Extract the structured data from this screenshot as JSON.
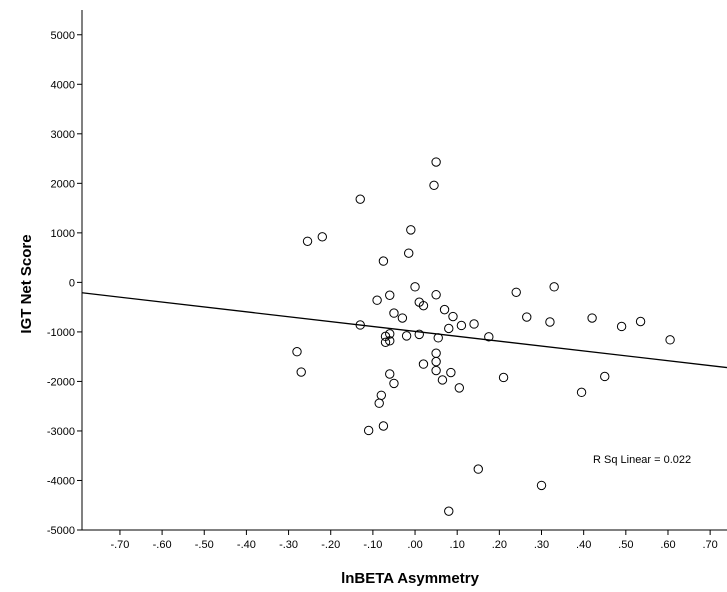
{
  "chart_data": {
    "type": "scatter",
    "title": "",
    "xlabel": "lnBETA Asymmetry",
    "ylabel": "IGT Net Score",
    "xlim": [
      -0.79,
      0.74
    ],
    "ylim": [
      -5000,
      5500
    ],
    "x_ticks": [
      -0.7,
      -0.6,
      -0.5,
      -0.4,
      -0.3,
      -0.2,
      -0.1,
      0.0,
      0.1,
      0.2,
      0.3,
      0.4,
      0.5,
      0.6,
      0.7
    ],
    "x_tick_labels": [
      "-.70",
      "-.60",
      "-.50",
      "-.40",
      "-.30",
      "-.20",
      "-.10",
      ".00",
      ".10",
      ".20",
      ".30",
      ".40",
      ".50",
      ".60",
      ".70"
    ],
    "y_ticks": [
      -5000,
      -4000,
      -3000,
      -2000,
      -1000,
      0,
      1000,
      2000,
      3000,
      4000,
      5000
    ],
    "y_tick_labels": [
      "-5000",
      "-4000",
      "-3000",
      "-2000",
      "-1000",
      "0",
      "1000",
      "2000",
      "3000",
      "4000",
      "5000"
    ],
    "grid": false,
    "fit_line": {
      "type": "linear",
      "x": [
        -0.79,
        0.74
      ],
      "y": [
        -210,
        -1720
      ]
    },
    "annotation": "R Sq Linear = 0.022",
    "points": [
      {
        "x": 0.05,
        "y": 2430
      },
      {
        "x": 0.045,
        "y": 1960
      },
      {
        "x": -0.13,
        "y": 1680
      },
      {
        "x": -0.255,
        "y": 830
      },
      {
        "x": -0.22,
        "y": 920
      },
      {
        "x": -0.01,
        "y": 1060
      },
      {
        "x": -0.015,
        "y": 590
      },
      {
        "x": -0.075,
        "y": 430
      },
      {
        "x": 0.0,
        "y": -90
      },
      {
        "x": 0.05,
        "y": -250
      },
      {
        "x": -0.06,
        "y": -260
      },
      {
        "x": -0.09,
        "y": -360
      },
      {
        "x": 0.01,
        "y": -400
      },
      {
        "x": 0.02,
        "y": -470
      },
      {
        "x": 0.07,
        "y": -550
      },
      {
        "x": -0.05,
        "y": -620
      },
      {
        "x": -0.03,
        "y": -720
      },
      {
        "x": 0.09,
        "y": -690
      },
      {
        "x": 0.11,
        "y": -870
      },
      {
        "x": 0.14,
        "y": -840
      },
      {
        "x": -0.13,
        "y": -860
      },
      {
        "x": 0.08,
        "y": -930
      },
      {
        "x": 0.01,
        "y": -1050
      },
      {
        "x": -0.02,
        "y": -1080
      },
      {
        "x": -0.06,
        "y": -1040
      },
      {
        "x": -0.07,
        "y": -1090
      },
      {
        "x": 0.055,
        "y": -1120
      },
      {
        "x": 0.175,
        "y": -1100
      },
      {
        "x": -0.06,
        "y": -1180
      },
      {
        "x": -0.07,
        "y": -1210
      },
      {
        "x": 0.05,
        "y": -1430
      },
      {
        "x": 0.05,
        "y": -1600
      },
      {
        "x": 0.02,
        "y": -1650
      },
      {
        "x": 0.05,
        "y": -1780
      },
      {
        "x": 0.085,
        "y": -1820
      },
      {
        "x": -0.06,
        "y": -1850
      },
      {
        "x": 0.065,
        "y": -1970
      },
      {
        "x": -0.05,
        "y": -2040
      },
      {
        "x": 0.105,
        "y": -2130
      },
      {
        "x": 0.21,
        "y": -1920
      },
      {
        "x": -0.28,
        "y": -1400
      },
      {
        "x": -0.27,
        "y": -1810
      },
      {
        "x": -0.08,
        "y": -2280
      },
      {
        "x": -0.085,
        "y": -2440
      },
      {
        "x": -0.075,
        "y": -2900
      },
      {
        "x": -0.11,
        "y": -2990
      },
      {
        "x": 0.15,
        "y": -3770
      },
      {
        "x": 0.08,
        "y": -4620
      },
      {
        "x": 0.3,
        "y": -4100
      },
      {
        "x": 0.395,
        "y": -2220
      },
      {
        "x": 0.45,
        "y": -1900
      },
      {
        "x": 0.24,
        "y": -200
      },
      {
        "x": 0.33,
        "y": -90
      },
      {
        "x": 0.265,
        "y": -700
      },
      {
        "x": 0.32,
        "y": -800
      },
      {
        "x": 0.42,
        "y": -720
      },
      {
        "x": 0.49,
        "y": -890
      },
      {
        "x": 0.535,
        "y": -790
      },
      {
        "x": 0.605,
        "y": -1160
      }
    ]
  }
}
